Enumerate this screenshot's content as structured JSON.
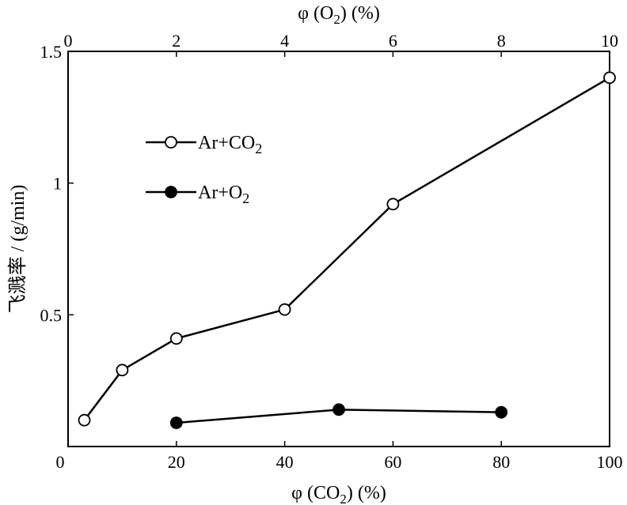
{
  "chart_data": {
    "type": "line",
    "series": [
      {
        "name": "Ar+CO2",
        "axis": "bottom",
        "marker": "open-circle",
        "x": [
          3,
          10,
          20,
          40,
          60,
          100
        ],
        "y": [
          0.1,
          0.29,
          0.41,
          0.52,
          0.92,
          1.4
        ]
      },
      {
        "name": "Ar+O2",
        "axis": "top",
        "marker": "filled-circle",
        "x": [
          2,
          5,
          8
        ],
        "y": [
          0.09,
          0.14,
          0.13
        ]
      }
    ],
    "xlabel_bottom": {
      "pre": "φ (CO",
      "sub": "2",
      "post": ") (%)"
    },
    "xlabel_top": {
      "pre": "φ (O",
      "sub": "2",
      "post": ") (%)"
    },
    "ylabel": "飞溅率 / (g/min)",
    "x_bottom": {
      "lim": [
        0,
        100
      ],
      "ticks": [
        0,
        20,
        40,
        60,
        80,
        100
      ],
      "tick_labels": [
        "0",
        "20",
        "40",
        "60",
        "80",
        "100"
      ]
    },
    "x_top": {
      "lim": [
        0,
        10
      ],
      "ticks": [
        0,
        2,
        4,
        6,
        8,
        10
      ],
      "tick_labels": [
        "0",
        "2",
        "4",
        "6",
        "8",
        "10"
      ]
    },
    "y": {
      "lim": [
        0,
        1.5
      ],
      "ticks": [
        0.5,
        1,
        1.5
      ],
      "tick_labels": [
        "0.5",
        "1",
        "1.5"
      ]
    },
    "legend": {
      "placement": "upper-left",
      "entries": [
        {
          "pre": "Ar+CO",
          "sub": "2",
          "marker": "open-circle"
        },
        {
          "pre": "Ar+O",
          "sub": "2",
          "marker": "filled-circle"
        }
      ]
    },
    "grid": false
  }
}
